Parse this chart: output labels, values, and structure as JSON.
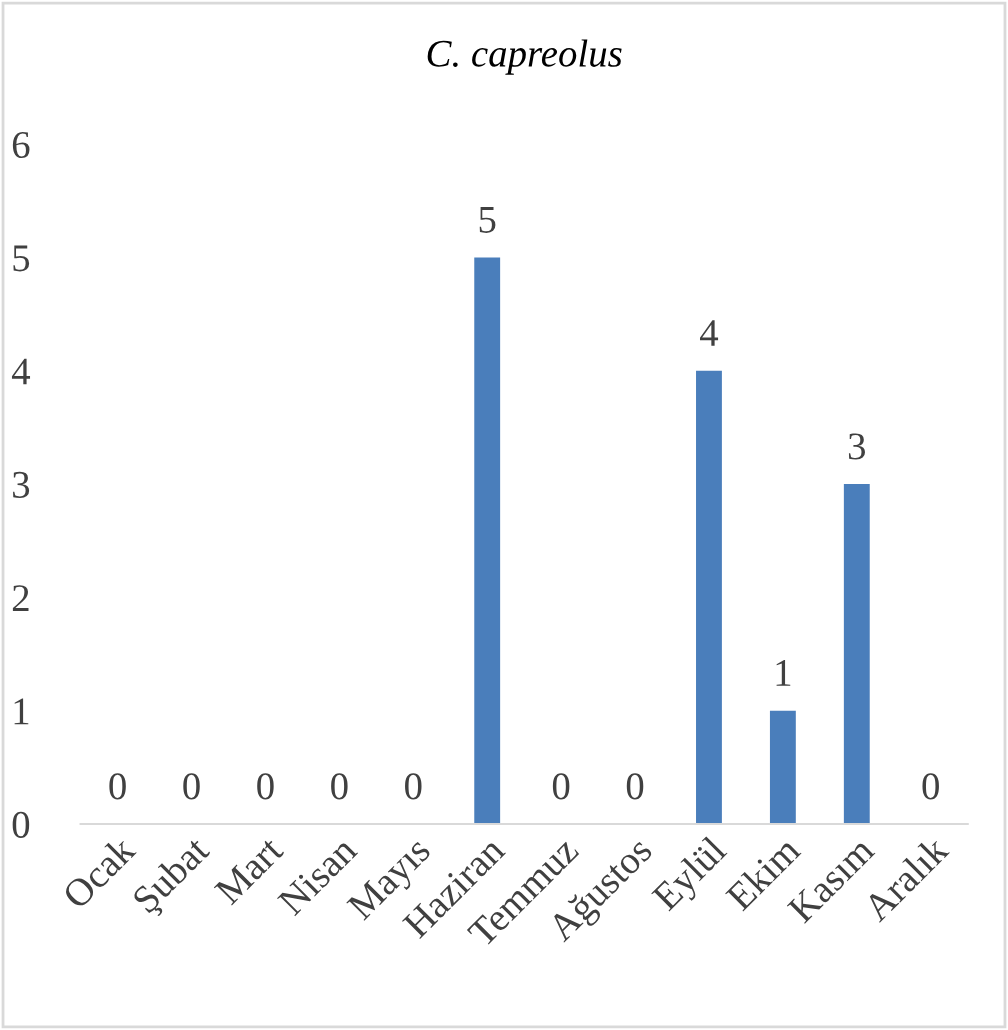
{
  "chart_data": {
    "type": "bar",
    "title": "C. capreolus",
    "categories": [
      "Ocak",
      "Şubat",
      "Mart",
      "Nisan",
      "Mayıs",
      "Haziran",
      "Temmuz",
      "Ağustos",
      "Eylül",
      "Ekim",
      "Kasım",
      "Aralık"
    ],
    "values": [
      0,
      0,
      0,
      0,
      0,
      5,
      0,
      0,
      4,
      1,
      3,
      0
    ],
    "color": "#4a7ebb",
    "ylim": [
      0,
      6
    ],
    "yticks": [
      0,
      1,
      2,
      3,
      4,
      5,
      6
    ],
    "grid": false,
    "data_labels": true
  }
}
